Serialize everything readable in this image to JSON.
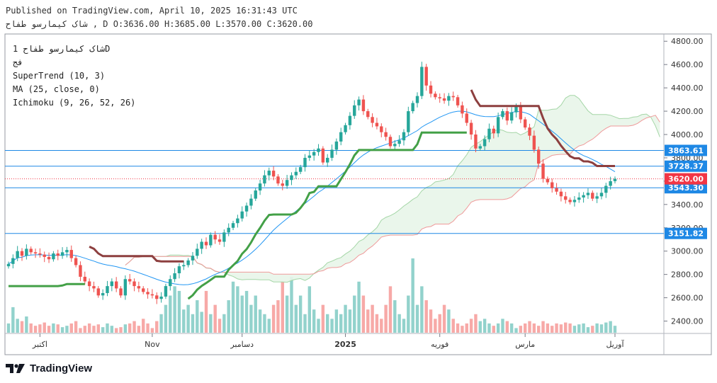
{
  "header": {
    "published": "Published on TradingView.com, April 10, 2025 16:31:43 UTC",
    "ohlc_line": "شاک کیمارسو طفاح , D O:3636.00 H:3685.00 L:3570.00 C:3620.00"
  },
  "legend": {
    "symbol": "شاک کیمارسو طفاح 1D",
    "exchange": "فج",
    "supertrend": "SuperTrend (10, 3)",
    "ma": "MA (25, close, 0)",
    "ichimoku": "Ichimoku (9, 26, 52, 26)"
  },
  "brand": {
    "name": "TradingView"
  },
  "chart_data": {
    "type": "candlestick",
    "ylim": [
      2300,
      4850
    ],
    "yticks": [
      "2400.00",
      "2600.00",
      "2800.00",
      "3000.00",
      "3200.00",
      "3400.00",
      "3600.00",
      "3800.00",
      "4000.00",
      "4200.00",
      "4400.00",
      "4600.00",
      "4800.00"
    ],
    "xtick_labels": [
      "اکتبر",
      "Nov",
      "دسامبر",
      "2025",
      "فوریه",
      "مارس",
      "آوریل"
    ],
    "xtick_index": [
      7,
      32,
      52,
      75,
      96,
      115,
      135
    ],
    "price_lines": [
      {
        "value": 3863.61,
        "label": "3863.61",
        "color": "#1e88e5"
      },
      {
        "value": 3728.37,
        "label": "3728.37",
        "color": "#1e88e5"
      },
      {
        "value": 3543.3,
        "label": "3543.30",
        "color": "#1e88e5"
      },
      {
        "value": 3151.82,
        "label": "3151.82",
        "color": "#1e88e5"
      }
    ],
    "last_price": {
      "value": 3620.0,
      "label": "3620.00",
      "color": "#f23645"
    },
    "colors": {
      "up": "#26a69a",
      "down": "#ef5350",
      "ma": "#2196f3",
      "st_up": "#43a047",
      "st_down": "#8d3f3f",
      "cloud": "#e8f5e9",
      "spanA": "#a5d6a7",
      "spanB": "#ef9a9a"
    },
    "closes": [
      2890,
      2940,
      3000,
      2960,
      3020,
      2990,
      2980,
      2970,
      2950,
      2930,
      2980,
      2960,
      2990,
      3010,
      2940,
      2880,
      2780,
      2740,
      2700,
      2680,
      2620,
      2640,
      2700,
      2740,
      2680,
      2620,
      2760,
      2740,
      2700,
      2680,
      2650,
      2630,
      2620,
      2590,
      2610,
      2700,
      2760,
      2810,
      2870,
      2880,
      2920,
      2960,
      3020,
      3080,
      3050,
      3140,
      3100,
      3080,
      3160,
      3200,
      3240,
      3280,
      3340,
      3390,
      3450,
      3520,
      3580,
      3650,
      3690,
      3640,
      3580,
      3560,
      3610,
      3650,
      3680,
      3720,
      3800,
      3820,
      3850,
      3880,
      3760,
      3800,
      3870,
      3940,
      4020,
      4080,
      4160,
      4250,
      4300,
      4200,
      4150,
      4100,
      4070,
      4020,
      3980,
      3900,
      3920,
      3950,
      4020,
      4200,
      4270,
      4330,
      4580,
      4420,
      4350,
      4320,
      4310,
      4290,
      4330,
      4320,
      4250,
      4180,
      4100,
      4000,
      3880,
      3900,
      3960,
      4050,
      4010,
      4150,
      4200,
      4120,
      4190,
      4240,
      4130,
      4060,
      3990,
      3870,
      3750,
      3620,
      3590,
      3540,
      3510,
      3470,
      3440,
      3420,
      3440,
      3460,
      3480,
      3500,
      3450,
      3470,
      3500,
      3560,
      3600,
      3620
    ],
    "volumes": [
      20,
      55,
      30,
      25,
      35,
      20,
      15,
      18,
      22,
      15,
      20,
      18,
      12,
      15,
      20,
      25,
      10,
      15,
      20,
      15,
      18,
      12,
      20,
      15,
      10,
      12,
      18,
      20,
      25,
      15,
      30,
      20,
      10,
      25,
      40,
      60,
      80,
      100,
      90,
      50,
      60,
      40,
      70,
      45,
      90,
      40,
      60,
      30,
      40,
      70,
      110,
      100,
      80,
      90,
      60,
      80,
      50,
      40,
      30,
      60,
      70,
      110,
      80,
      120,
      60,
      80,
      40,
      100,
      50,
      30,
      60,
      40,
      30,
      50,
      40,
      60,
      50,
      80,
      110,
      80,
      50,
      60,
      40,
      30,
      60,
      100,
      70,
      40,
      30,
      80,
      160,
      60,
      100,
      70,
      50,
      30,
      40,
      60,
      50,
      30,
      20,
      15,
      20,
      30,
      40,
      25,
      30,
      20,
      15,
      20,
      30,
      25,
      20,
      10,
      15,
      20,
      25,
      20,
      15,
      25,
      20,
      15,
      20,
      18,
      22,
      20,
      15,
      18,
      20,
      12,
      15,
      20,
      18,
      22,
      25,
      15
    ]
  }
}
